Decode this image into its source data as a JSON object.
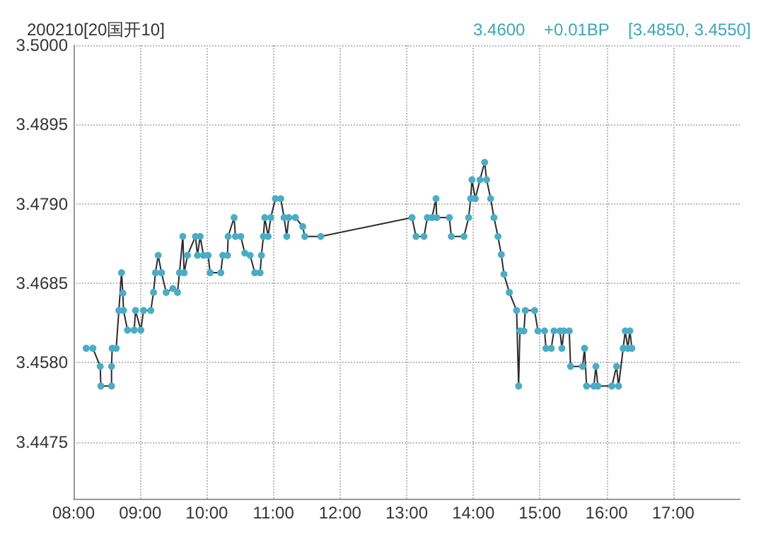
{
  "chart_data": {
    "type": "line",
    "title": "200210[20国开10]",
    "annotations": [
      "3.4600",
      "+0.01BP",
      "[3.4850, 3.4550]"
    ],
    "xlim": [
      8,
      18
    ],
    "xticks": [
      {
        "value": 8,
        "label": "08:00"
      },
      {
        "value": 9,
        "label": "09:00"
      },
      {
        "value": 10,
        "label": "10:00"
      },
      {
        "value": 11,
        "label": "11:00"
      },
      {
        "value": 12,
        "label": "12:00"
      },
      {
        "value": 13,
        "label": "13:00"
      },
      {
        "value": 14,
        "label": "14:00"
      },
      {
        "value": 15,
        "label": "15:00"
      },
      {
        "value": 16,
        "label": "16:00"
      },
      {
        "value": 17,
        "label": "17:00"
      }
    ],
    "ylim": [
      3.44,
      3.5
    ],
    "yticks": [
      {
        "value": 3.4475,
        "label": "3.4475"
      },
      {
        "value": 3.458,
        "label": "3.4580"
      },
      {
        "value": 3.4685,
        "label": "3.4685"
      },
      {
        "value": 3.479,
        "label": "3.4790"
      },
      {
        "value": 3.4895,
        "label": "3.4895"
      },
      {
        "value": 3.5,
        "label": "3.5000"
      }
    ],
    "grid": true,
    "marker": "circle",
    "line_style": "solid",
    "series": [
      {
        "color": "#2b2b2b",
        "x": [
          8.19,
          8.29,
          8.4,
          8.41,
          8.57,
          8.57,
          8.58,
          8.64,
          8.68,
          8.72,
          8.74,
          8.75,
          8.81,
          8.91,
          8.93,
          9.01,
          9.05,
          9.16,
          9.2,
          9.23,
          9.27,
          9.32,
          9.39,
          9.49,
          9.56,
          9.59,
          9.64,
          9.66,
          9.71,
          9.83,
          9.86,
          9.9,
          9.95,
          10.02,
          10.05,
          10.21,
          10.24,
          10.31,
          10.32,
          10.41,
          10.43,
          10.51,
          10.57,
          10.65,
          10.72,
          10.8,
          10.82,
          10.85,
          10.87,
          10.92,
          10.96,
          11.03,
          11.11,
          11.16,
          11.2,
          11.23,
          11.33,
          11.44,
          11.47,
          11.71,
          13.08,
          13.14,
          13.26,
          13.31,
          13.38,
          13.44,
          13.45,
          13.64,
          13.67,
          13.86,
          13.93,
          13.96,
          13.98,
          14.03,
          14.1,
          14.17,
          14.2,
          14.26,
          14.31,
          14.37,
          14.42,
          14.46,
          14.54,
          14.65,
          14.68,
          14.7,
          14.76,
          14.78,
          14.92,
          14.97,
          15.07,
          15.09,
          15.17,
          15.21,
          15.3,
          15.33,
          15.36,
          15.44,
          15.46,
          15.64,
          15.67,
          15.7,
          15.81,
          15.84,
          15.87,
          16.08,
          16.15,
          16.18,
          16.25,
          16.28,
          16.32,
          16.35,
          16.38
        ],
        "values": [
          3.4599,
          3.4599,
          3.4575,
          3.4549,
          3.4549,
          3.4575,
          3.4599,
          3.4599,
          3.4649,
          3.4699,
          3.4672,
          3.4649,
          3.4623,
          3.4623,
          3.4649,
          3.4623,
          3.4649,
          3.4649,
          3.4673,
          3.4699,
          3.4722,
          3.4699,
          3.4673,
          3.4678,
          3.4673,
          3.4699,
          3.4747,
          3.4699,
          3.4722,
          3.4747,
          3.4722,
          3.4747,
          3.4722,
          3.4722,
          3.4699,
          3.4699,
          3.4722,
          3.4722,
          3.4747,
          3.4772,
          3.4747,
          3.4747,
          3.4725,
          3.4722,
          3.4699,
          3.4699,
          3.4722,
          3.4747,
          3.4772,
          3.4747,
          3.4772,
          3.4797,
          3.4797,
          3.4772,
          3.4747,
          3.4772,
          3.4772,
          3.476,
          3.4747,
          3.4747,
          3.4772,
          3.4747,
          3.4747,
          3.4772,
          3.4772,
          3.4797,
          3.4772,
          3.4772,
          3.4747,
          3.4747,
          3.4772,
          3.4797,
          3.4822,
          3.4797,
          3.4822,
          3.4845,
          3.4822,
          3.4797,
          3.4772,
          3.4747,
          3.4723,
          3.4697,
          3.4673,
          3.4649,
          3.4549,
          3.4622,
          3.4622,
          3.4649,
          3.4649,
          3.4622,
          3.4622,
          3.4599,
          3.4599,
          3.4622,
          3.4622,
          3.4599,
          3.4622,
          3.4622,
          3.4575,
          3.4575,
          3.4599,
          3.4549,
          3.4549,
          3.4575,
          3.4549,
          3.4549,
          3.4575,
          3.4549,
          3.4599,
          3.4622,
          3.4599,
          3.4622,
          3.4599
        ]
      }
    ]
  }
}
